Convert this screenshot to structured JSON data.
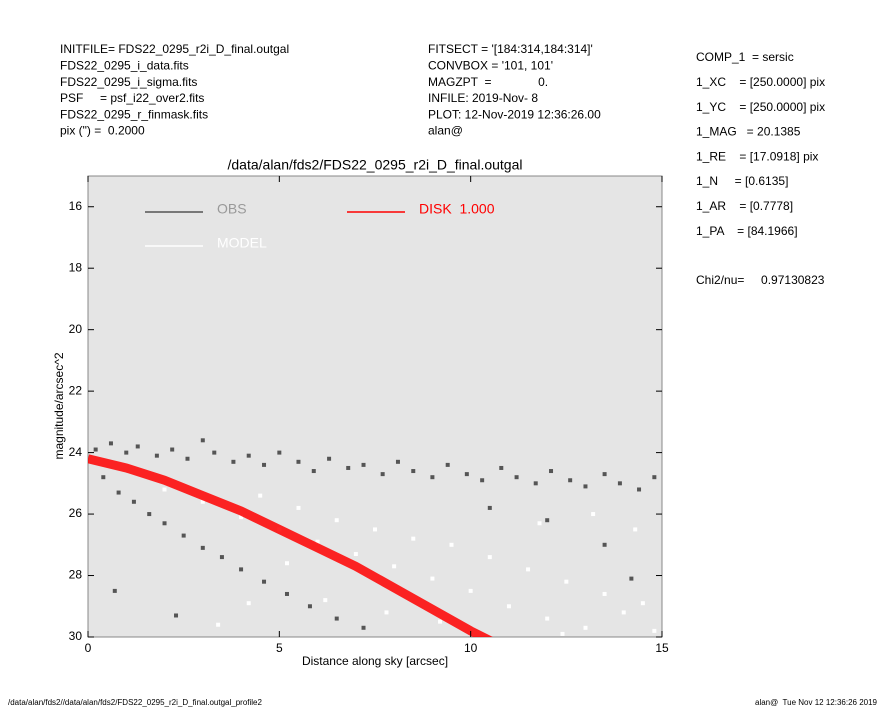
{
  "header": {
    "left": [
      "INITFILE= FDS22_0295_r2i_D_final.outgal",
      "FDS22_0295_i_data.fits",
      "FDS22_0295_i_sigma.fits",
      "PSF     = psf_i22_over2.fits",
      "FDS22_0295_r_finmask.fits",
      "pix (\") =  0.2000"
    ],
    "middle": [
      "FITSECT = '[184:314,184:314]'",
      "CONVBOX = '101, 101'",
      "MAGZPT  =              0.",
      "INFILE: 2019-Nov- 8",
      "PLOT: 12-Nov-2019 12:36:26.00",
      "alan@"
    ],
    "right": [
      "COMP_1  = sersic",
      "1_XC    = [250.0000] pix",
      "1_YC    = [250.0000] pix",
      "1_MAG   = 20.1385",
      "1_RE    = [17.0918] pix",
      "1_N     = [0.6135]",
      "1_AR    = [0.7778]",
      "1_PA    = [84.1966]",
      "Chi2/nu=     0.97130823"
    ]
  },
  "footer": {
    "left": "/data/alan/fds2//data/alan/fds2/FDS22_0295_r2i_D_final.outgal_profile2",
    "right": "alan@  Tue Nov 12 12:36:26 2019"
  },
  "chart_data": {
    "type": "scatter",
    "title": "/data/alan/fds2/FDS22_0295_r2i_D_final.outgal",
    "xlabel": "Distance along sky [arcsec]",
    "ylabel": "magnitude/arcsec^2",
    "xlim": [
      0,
      15
    ],
    "xticks": [
      0,
      5,
      10,
      15
    ],
    "ylim": [
      30,
      15
    ],
    "yticks": [
      16,
      18,
      20,
      22,
      24,
      26,
      28,
      30
    ],
    "series": [
      {
        "name": "OBS",
        "color": "#555555",
        "mode": "points",
        "x": [
          0.2,
          0.6,
          1.0,
          1.3,
          1.8,
          2.2,
          2.6,
          3.0,
          3.3,
          3.8,
          4.2,
          4.6,
          5.0,
          5.5,
          5.9,
          6.3,
          6.8,
          7.2,
          7.7,
          8.1,
          8.5,
          9.0,
          9.4,
          9.9,
          10.3,
          10.8,
          11.2,
          11.7,
          12.1,
          12.6,
          13.0,
          13.5,
          13.9,
          14.4,
          14.8,
          0.4,
          0.8,
          1.2,
          1.6,
          2.0,
          2.5,
          3.0,
          3.5,
          4.0,
          4.6,
          5.2,
          5.8,
          6.5,
          7.2,
          0.7,
          2.3,
          12.0,
          13.5,
          14.2,
          10.5
        ],
        "values": [
          23.9,
          23.7,
          24.0,
          23.8,
          24.1,
          23.9,
          24.2,
          23.6,
          24.0,
          24.3,
          24.1,
          24.4,
          24.0,
          24.3,
          24.6,
          24.2,
          24.5,
          24.4,
          24.7,
          24.3,
          24.6,
          24.8,
          24.4,
          24.7,
          24.9,
          24.5,
          24.8,
          25.0,
          24.6,
          24.9,
          25.1,
          24.7,
          25.0,
          25.2,
          24.8,
          24.8,
          25.3,
          25.6,
          26.0,
          26.3,
          26.7,
          27.1,
          27.4,
          27.8,
          28.2,
          28.6,
          29.0,
          29.4,
          29.7,
          28.5,
          29.3,
          26.2,
          27.0,
          28.1,
          25.8
        ]
      },
      {
        "name": "MODEL",
        "color": "#ffffff",
        "mode": "points",
        "x": [
          2.0,
          3.0,
          4.0,
          4.5,
          5.0,
          5.5,
          6.0,
          6.5,
          7.0,
          7.5,
          8.0,
          8.5,
          9.0,
          9.5,
          10.0,
          10.5,
          11.0,
          11.5,
          12.0,
          12.5,
          13.0,
          13.5,
          14.0,
          14.5,
          14.8,
          9.2,
          7.8,
          6.2,
          11.8,
          13.2,
          14.3,
          5.2,
          4.2,
          3.4,
          12.4
        ],
        "values": [
          25.2,
          25.6,
          26.1,
          25.4,
          26.5,
          25.8,
          26.9,
          26.2,
          27.3,
          26.5,
          27.7,
          26.8,
          28.1,
          27.0,
          28.5,
          27.4,
          29.0,
          27.8,
          29.4,
          28.2,
          29.7,
          28.6,
          29.2,
          28.9,
          29.8,
          29.5,
          29.2,
          28.8,
          26.3,
          26.0,
          26.5,
          27.6,
          28.9,
          29.6,
          29.9
        ]
      },
      {
        "name": "DISK  1.000",
        "color": "#ff0000",
        "mode": "line",
        "x": [
          0,
          1,
          2,
          3,
          4,
          5,
          6,
          7,
          8,
          9,
          10,
          10.8
        ],
        "values": [
          24.2,
          24.5,
          24.9,
          25.4,
          25.9,
          26.5,
          27.1,
          27.7,
          28.4,
          29.1,
          29.8,
          30.3
        ]
      }
    ]
  }
}
